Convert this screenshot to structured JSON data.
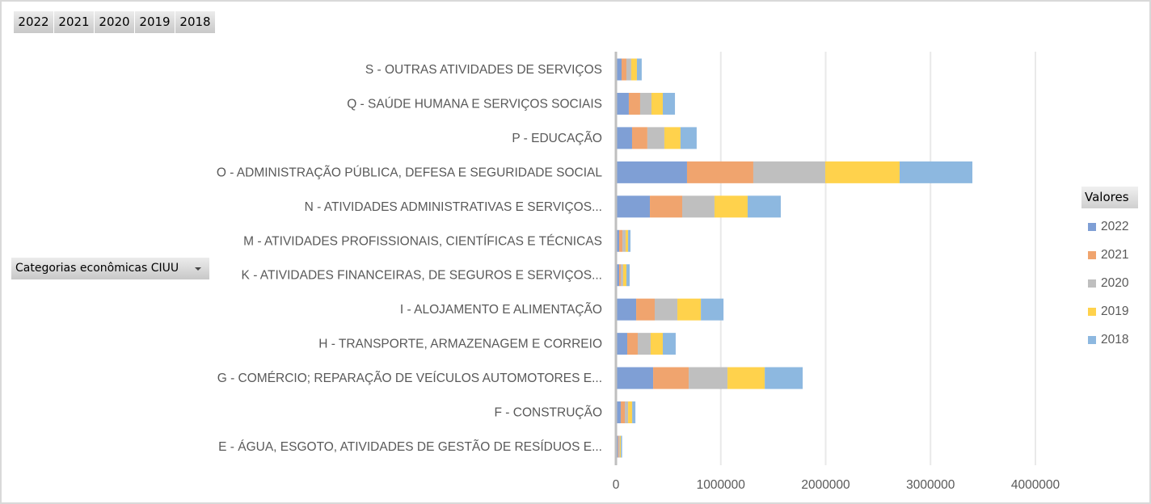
{
  "year_filters": [
    "2022",
    "2021",
    "2020",
    "2019",
    "2018"
  ],
  "category_filter": {
    "label": "Categorias econômicas CIUU",
    "icon": "dropdown-arrow-icon"
  },
  "legend_title": "Valores",
  "chart_data": {
    "type": "bar",
    "orientation": "horizontal",
    "stacked": true,
    "title": "",
    "xlabel": "",
    "ylabel": "",
    "xlim": [
      0,
      4000000
    ],
    "x_ticks": [
      "0",
      "1000000",
      "2000000",
      "3000000",
      "4000000"
    ],
    "grid": true,
    "legend_position": "right",
    "categories": [
      "S - OUTRAS ATIVIDADES DE SERVIÇOS",
      "Q - SAÚDE HUMANA E SERVIÇOS SOCIAIS",
      "P - EDUCAÇÃO",
      "O - ADMINISTRAÇÃO PÚBLICA, DEFESA E SEGURIDADE SOCIAL",
      "N - ATIVIDADES ADMINISTRATIVAS E SERVIÇOS...",
      "M - ATIVIDADES PROFISSIONAIS, CIENTÍFICAS E TÉCNICAS",
      "K - ATIVIDADES FINANCEIRAS, DE SEGUROS E SERVIÇOS...",
      "I - ALOJAMENTO E ALIMENTAÇÃO",
      "H - TRANSPORTE, ARMAZENAGEM E CORREIO",
      "G - COMÉRCIO; REPARAÇÃO DE VEÍCULOS AUTOMOTORES E...",
      "F - CONSTRUÇÃO",
      "E - ÁGUA, ESGOTO, ATIVIDADES DE GESTÃO DE RESÍDUOS E..."
    ],
    "series": [
      {
        "name": "2022",
        "color": "#7f9fd5",
        "values": [
          54000,
          123000,
          154000,
          678000,
          324000,
          31000,
          31000,
          193000,
          108000,
          355000,
          46000,
          20000
        ]
      },
      {
        "name": "2021",
        "color": "#f0a46e",
        "values": [
          46000,
          108000,
          146000,
          632000,
          308000,
          31000,
          15000,
          177000,
          100000,
          339000,
          39000,
          9000
        ]
      },
      {
        "name": "2020",
        "color": "#bfbfbf",
        "values": [
          46000,
          108000,
          162000,
          686000,
          308000,
          31000,
          23000,
          216000,
          123000,
          370000,
          31000,
          9000
        ]
      },
      {
        "name": "2019",
        "color": "#ffd24c",
        "values": [
          54000,
          108000,
          154000,
          709000,
          316000,
          23000,
          31000,
          224000,
          116000,
          355000,
          39000,
          9000
        ]
      },
      {
        "name": "2018",
        "color": "#8db8e0",
        "values": [
          46000,
          116000,
          154000,
          694000,
          316000,
          23000,
          31000,
          216000,
          123000,
          362000,
          31000,
          12000
        ]
      }
    ]
  }
}
